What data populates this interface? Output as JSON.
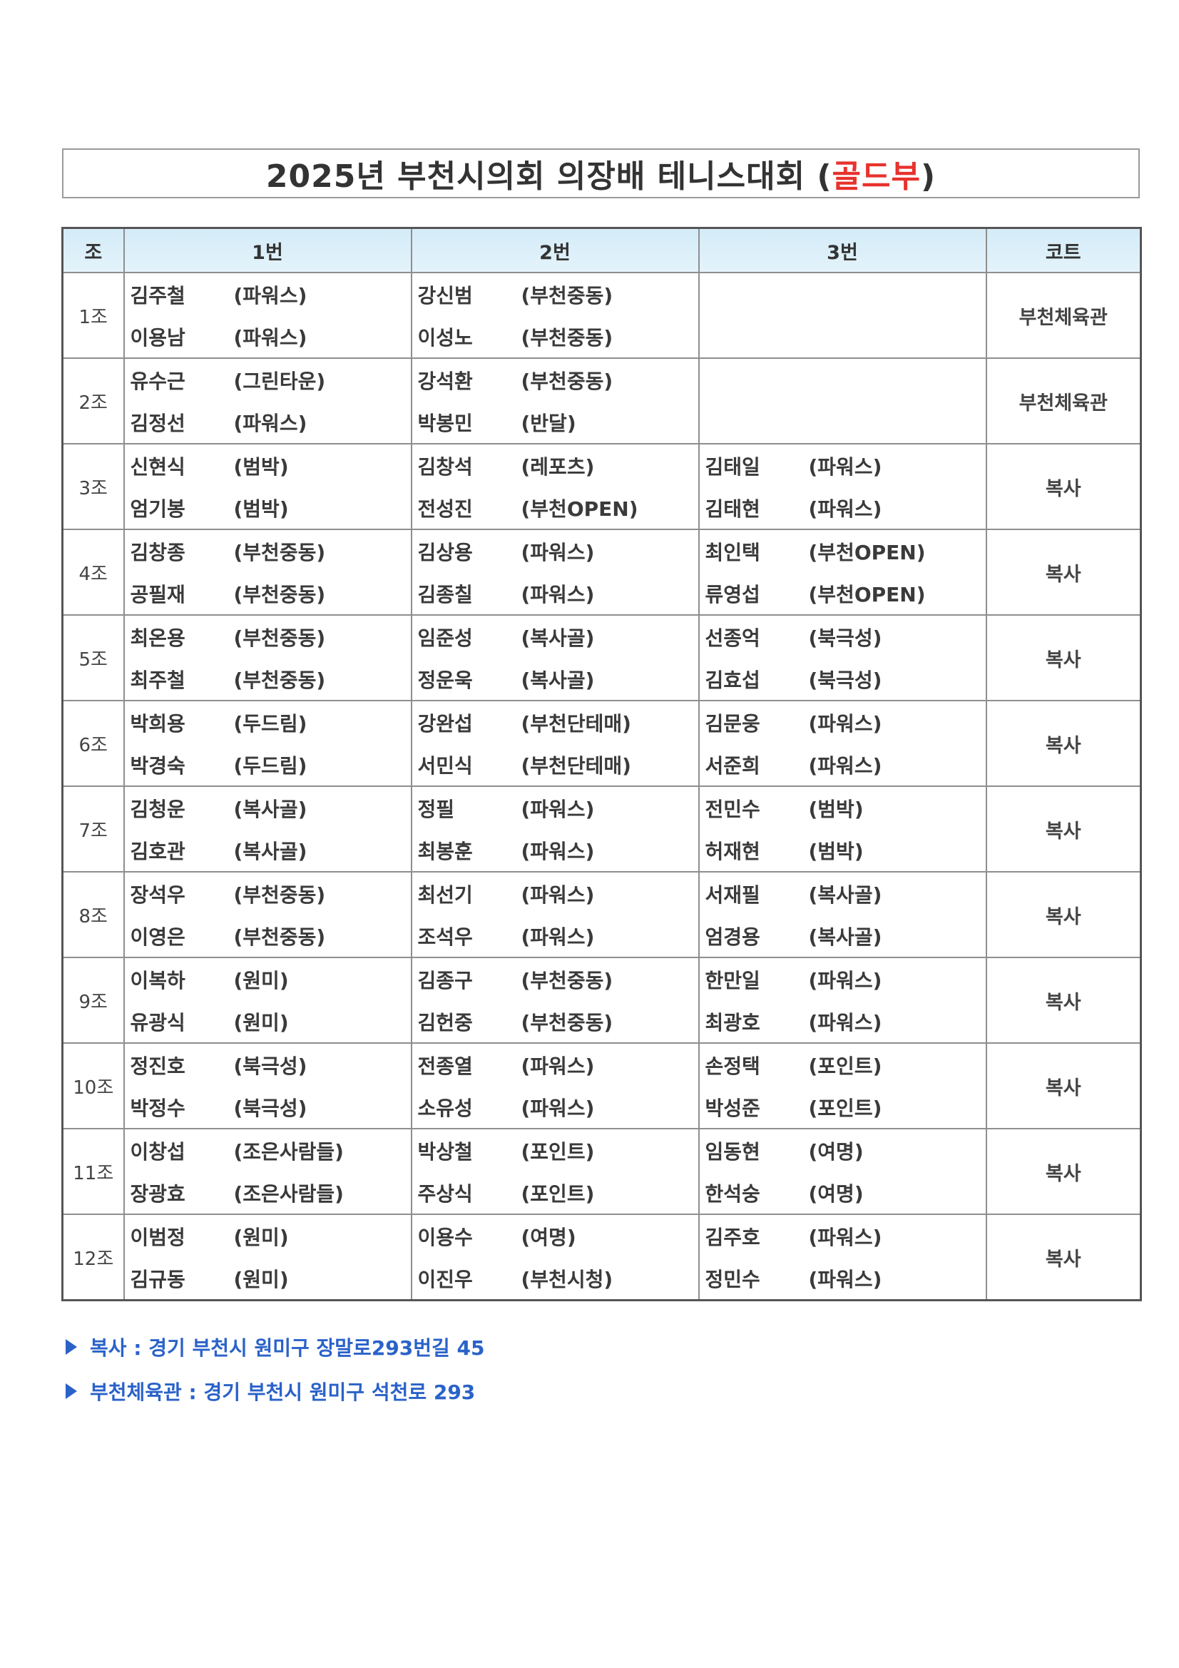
{
  "title": {
    "main": "2025년 부천시의회 의장배 테니스대회 (",
    "accent": "골드부",
    "close": ")",
    "accent_color": "#e8322d"
  },
  "headers": [
    "조",
    "1번",
    "2번",
    "3번",
    "코트"
  ],
  "groups": [
    {
      "group": "1조",
      "teams": [
        [
          [
            "김주철",
            "(파워스)"
          ],
          [
            "이용남",
            "(파워스)"
          ]
        ],
        [
          [
            "강신범",
            "(부천중동)"
          ],
          [
            "이성노",
            "(부천중동)"
          ]
        ],
        []
      ],
      "court": "부천체육관"
    },
    {
      "group": "2조",
      "teams": [
        [
          [
            "유수근",
            "(그린타운)"
          ],
          [
            "김정선",
            "(파워스)"
          ]
        ],
        [
          [
            "강석환",
            "(부천중동)"
          ],
          [
            "박봉민",
            "(반달)"
          ]
        ],
        []
      ],
      "court": "부천체육관"
    },
    {
      "group": "3조",
      "teams": [
        [
          [
            "신현식",
            "(범박)"
          ],
          [
            "엄기봉",
            "(범박)"
          ]
        ],
        [
          [
            "김창석",
            "(레포츠)"
          ],
          [
            "전성진",
            "(부천OPEN)"
          ]
        ],
        [
          [
            "김태일",
            "(파워스)"
          ],
          [
            "김태현",
            "(파워스)"
          ]
        ]
      ],
      "court": "복사"
    },
    {
      "group": "4조",
      "teams": [
        [
          [
            "김창종",
            "(부천중동)"
          ],
          [
            "공필재",
            "(부천중동)"
          ]
        ],
        [
          [
            "김상용",
            "(파워스)"
          ],
          [
            "김종칠",
            "(파워스)"
          ]
        ],
        [
          [
            "최인택",
            "(부천OPEN)"
          ],
          [
            "류영섭",
            "(부천OPEN)"
          ]
        ]
      ],
      "court": "복사"
    },
    {
      "group": "5조",
      "teams": [
        [
          [
            "최온용",
            "(부천중동)"
          ],
          [
            "최주철",
            "(부천중동)"
          ]
        ],
        [
          [
            "임준성",
            "(복사골)"
          ],
          [
            "정운욱",
            "(복사골)"
          ]
        ],
        [
          [
            "선종억",
            "(북극성)"
          ],
          [
            "김효섭",
            "(북극성)"
          ]
        ]
      ],
      "court": "복사"
    },
    {
      "group": "6조",
      "teams": [
        [
          [
            "박희용",
            "(두드림)"
          ],
          [
            "박경숙",
            "(두드림)"
          ]
        ],
        [
          [
            "강완섭",
            "(부천단테매)"
          ],
          [
            "서민식",
            "(부천단테매)"
          ]
        ],
        [
          [
            "김문웅",
            "(파워스)"
          ],
          [
            "서준희",
            "(파워스)"
          ]
        ]
      ],
      "court": "복사"
    },
    {
      "group": "7조",
      "teams": [
        [
          [
            "김청운",
            "(복사골)"
          ],
          [
            "김호관",
            "(복사골)"
          ]
        ],
        [
          [
            "정필",
            "(파워스)"
          ],
          [
            "최봉훈",
            "(파워스)"
          ]
        ],
        [
          [
            "전민수",
            "(범박)"
          ],
          [
            "허재현",
            "(범박)"
          ]
        ]
      ],
      "court": "복사"
    },
    {
      "group": "8조",
      "teams": [
        [
          [
            "장석우",
            "(부천중동)"
          ],
          [
            "이영은",
            "(부천중동)"
          ]
        ],
        [
          [
            "최선기",
            "(파워스)"
          ],
          [
            "조석우",
            "(파워스)"
          ]
        ],
        [
          [
            "서재필",
            "(복사골)"
          ],
          [
            "엄경용",
            "(복사골)"
          ]
        ]
      ],
      "court": "복사"
    },
    {
      "group": "9조",
      "teams": [
        [
          [
            "이복하",
            "(원미)"
          ],
          [
            "유광식",
            "(원미)"
          ]
        ],
        [
          [
            "김종구",
            "(부천중동)"
          ],
          [
            "김헌중",
            "(부천중동)"
          ]
        ],
        [
          [
            "한만일",
            "(파워스)"
          ],
          [
            "최광호",
            "(파워스)"
          ]
        ]
      ],
      "court": "복사"
    },
    {
      "group": "10조",
      "teams": [
        [
          [
            "정진호",
            "(북극성)"
          ],
          [
            "박정수",
            "(북극성)"
          ]
        ],
        [
          [
            "전종열",
            "(파워스)"
          ],
          [
            "소유성",
            "(파워스)"
          ]
        ],
        [
          [
            "손정택",
            "(포인트)"
          ],
          [
            "박성준",
            "(포인트)"
          ]
        ]
      ],
      "court": "복사"
    },
    {
      "group": "11조",
      "teams": [
        [
          [
            "이창섭",
            "(조은사람들)"
          ],
          [
            "장광효",
            "(조은사람들)"
          ]
        ],
        [
          [
            "박상철",
            "(포인트)"
          ],
          [
            "주상식",
            "(포인트)"
          ]
        ],
        [
          [
            "임동현",
            "(여명)"
          ],
          [
            "한석숭",
            "(여명)"
          ]
        ]
      ],
      "court": "복사"
    },
    {
      "group": "12조",
      "teams": [
        [
          [
            "이범정",
            "(원미)"
          ],
          [
            "김규동",
            "(원미)"
          ]
        ],
        [
          [
            "이용수",
            "(여명)"
          ],
          [
            "이진우",
            "(부천시청)"
          ]
        ],
        [
          [
            "김주호",
            "(파워스)"
          ],
          [
            "정민수",
            "(파워스)"
          ]
        ]
      ],
      "court": "복사"
    }
  ],
  "notes": [
    {
      "icon": "triangle-right-icon",
      "text": "복사 : 경기 부천시 원미구 장말로293번길 45"
    },
    {
      "icon": "triangle-right-icon",
      "text": "부천체육관 :  경기 부천시 원미구 석천로 293"
    }
  ],
  "note_color": "#2a62c9"
}
